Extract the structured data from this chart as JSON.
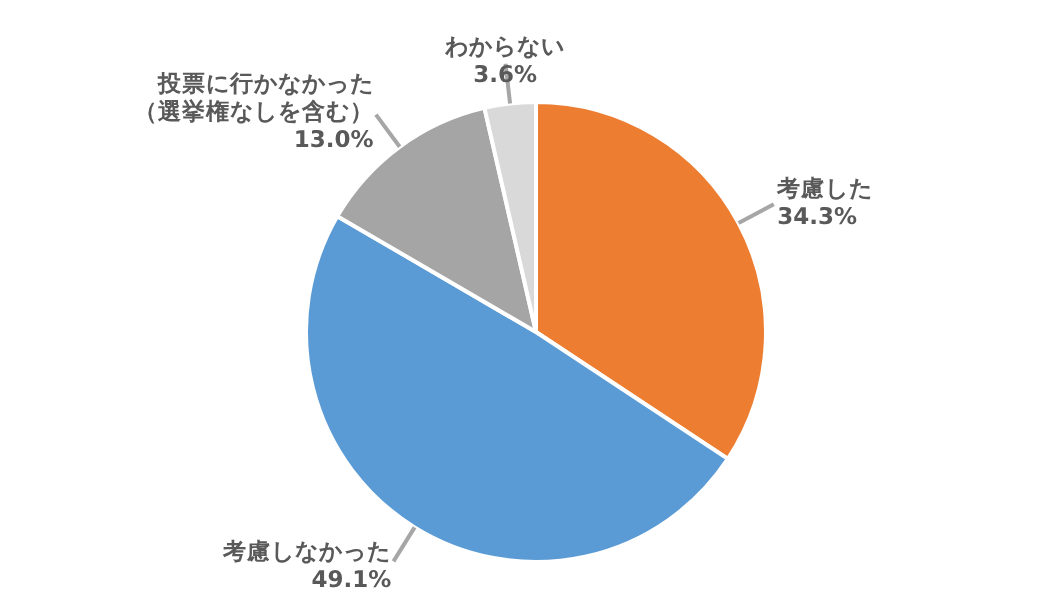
{
  "chart_data": {
    "type": "pie",
    "categories": [
      "考慮した",
      "考慮しなかった",
      "投票に行かなかった（選挙権なしを含む）",
      "わからない"
    ],
    "values": [
      34.3,
      49.1,
      13.0,
      3.6
    ],
    "colors": [
      "#ed7d31",
      "#5b9bd5",
      "#a5a5a5",
      "#d9d9d9"
    ],
    "value_labels": [
      "34.3%",
      "49.1%",
      "13.0%",
      "3.6%"
    ],
    "legend": false
  }
}
